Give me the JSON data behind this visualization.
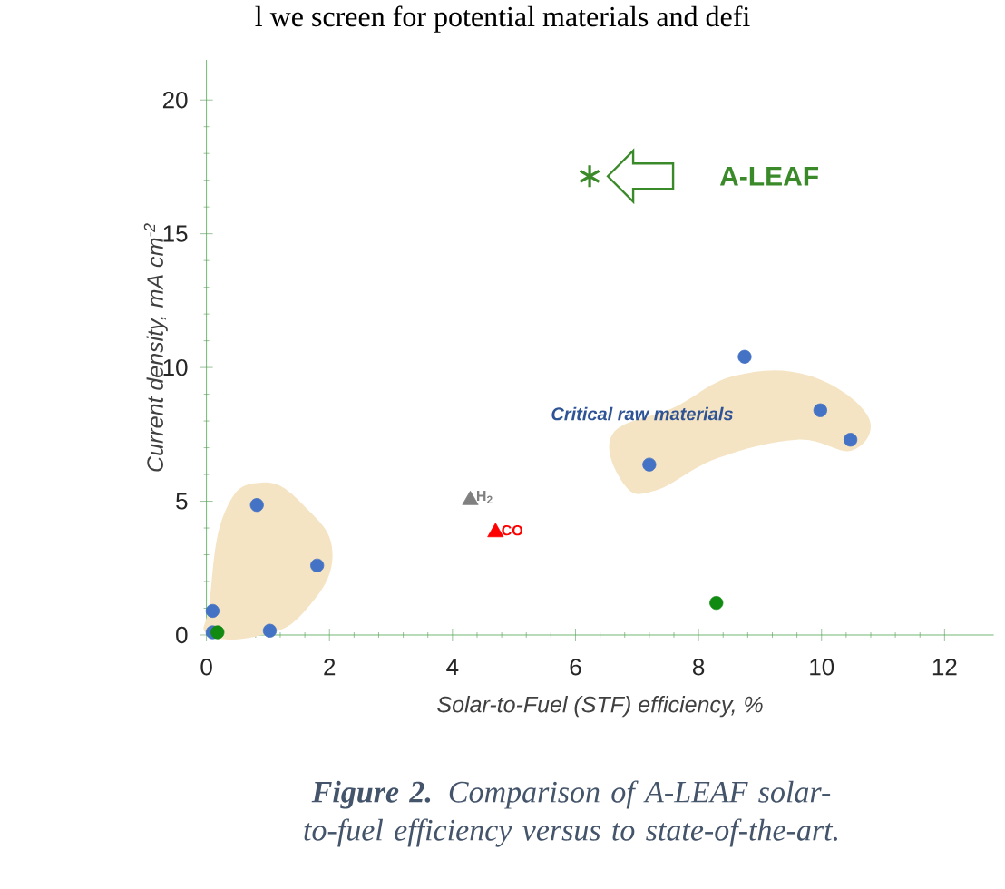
{
  "chart_data": {
    "type": "scatter",
    "xlabel": "Solar-to-Fuel (STF) efficiency, %",
    "ylabel": "Current density, mA cm$^{-2}$",
    "xlim": [
      0,
      12.8
    ],
    "ylim": [
      0,
      21.5
    ],
    "xticks": [
      0,
      2,
      4,
      6,
      8,
      10,
      12
    ],
    "yticks": [
      0,
      5,
      10,
      15,
      20
    ],
    "legend": "top",
    "grid": false,
    "series": [
      {
        "type": "scatter",
        "marker": "circle",
        "color": "#4472c4",
        "x": [
          0.1,
          0.1,
          0.82,
          1.03,
          1.8,
          7.2,
          8.75,
          9.98,
          10.47
        ],
        "values": [
          0.9,
          0.1,
          4.86,
          0.16,
          2.6,
          6.37,
          10.4,
          8.4,
          7.3
        ]
      },
      {
        "type": "scatter",
        "marker": "circle",
        "color": "#108a10",
        "x": [
          0.18,
          8.29
        ],
        "values": [
          0.1,
          1.2
        ]
      },
      {
        "type": "scatter",
        "marker": "triangle",
        "name": "H$_{2}$",
        "color": "#808080",
        "x": [
          4.29
        ],
        "values": [
          5.04
        ]
      },
      {
        "type": "scatter",
        "marker": "triangle",
        "name": "CO",
        "color": "#ff0000",
        "x": [
          4.7
        ],
        "values": [
          3.84
        ]
      },
      {
        "type": "scatter",
        "marker": "cross",
        "name": "A-LEAF",
        "color": "#3a8a2a",
        "x": [
          6.23
        ],
        "values": [
          17.15
        ]
      }
    ],
    "annotations": [
      "Critical raw materials",
      "l we screen for potential materials and defi",
      "**Figure 2.** Comparison of A-LEAF solar-to-fuel efficiency versus to state-of-the-art."
    ]
  }
}
